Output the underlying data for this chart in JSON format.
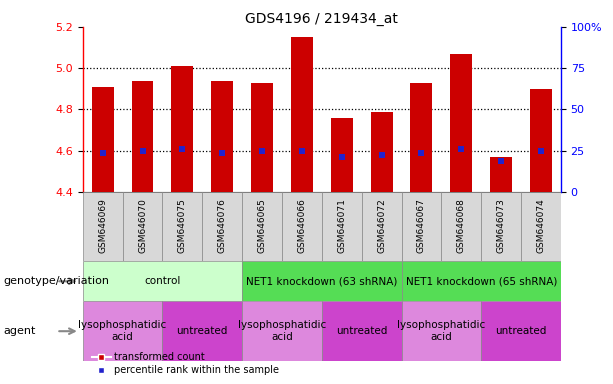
{
  "title": "GDS4196 / 219434_at",
  "samples": [
    "GSM646069",
    "GSM646070",
    "GSM646075",
    "GSM646076",
    "GSM646065",
    "GSM646066",
    "GSM646071",
    "GSM646072",
    "GSM646067",
    "GSM646068",
    "GSM646073",
    "GSM646074"
  ],
  "bar_bottoms": [
    4.4,
    4.4,
    4.4,
    4.4,
    4.4,
    4.4,
    4.4,
    4.4,
    4.4,
    4.4,
    4.4,
    4.4
  ],
  "bar_tops": [
    4.91,
    4.94,
    5.01,
    4.94,
    4.93,
    5.15,
    4.76,
    4.79,
    4.93,
    5.07,
    4.57,
    4.9
  ],
  "percentile_values": [
    4.59,
    4.6,
    4.61,
    4.59,
    4.6,
    4.6,
    4.57,
    4.58,
    4.59,
    4.61,
    4.55,
    4.6
  ],
  "ylim_left": [
    4.4,
    5.2
  ],
  "ylim_right": [
    0,
    100
  ],
  "yticks_left": [
    4.4,
    4.6,
    4.8,
    5.0,
    5.2
  ],
  "yticks_right": [
    0,
    25,
    50,
    75,
    100
  ],
  "ytick_labels_right": [
    "0",
    "25",
    "50",
    "75",
    "100%"
  ],
  "bar_color": "#cc0000",
  "percentile_color": "#2222cc",
  "dotted_lines": [
    4.6,
    4.8,
    5.0
  ],
  "genotype_groups": [
    {
      "label": "control",
      "start": 0,
      "end": 4,
      "color": "#ccffcc"
    },
    {
      "label": "NET1 knockdown (63 shRNA)",
      "start": 4,
      "end": 8,
      "color": "#55dd55"
    },
    {
      "label": "NET1 knockdown (65 shRNA)",
      "start": 8,
      "end": 12,
      "color": "#55dd55"
    }
  ],
  "agent_groups": [
    {
      "label": "lysophosphatidic\nacid",
      "start": 0,
      "end": 2,
      "color": "#dd88dd"
    },
    {
      "label": "untreated",
      "start": 2,
      "end": 4,
      "color": "#cc44cc"
    },
    {
      "label": "lysophosphatidic\nacid",
      "start": 4,
      "end": 6,
      "color": "#dd88dd"
    },
    {
      "label": "untreated",
      "start": 6,
      "end": 8,
      "color": "#cc44cc"
    },
    {
      "label": "lysophosphatidic\nacid",
      "start": 8,
      "end": 10,
      "color": "#dd88dd"
    },
    {
      "label": "untreated",
      "start": 10,
      "end": 12,
      "color": "#cc44cc"
    }
  ],
  "legend_red": "transformed count",
  "legend_blue": "percentile rank within the sample",
  "genotype_label": "genotype/variation",
  "agent_label": "agent",
  "title_fontsize": 10,
  "tick_fontsize": 8,
  "sample_fontsize": 6.5,
  "annotation_fontsize": 7.5,
  "label_fontsize": 8
}
